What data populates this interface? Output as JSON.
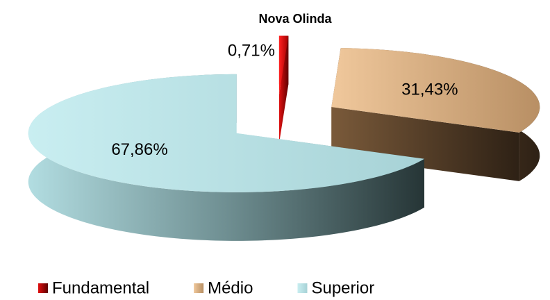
{
  "chart_data": {
    "type": "pie3d",
    "title": "Nova Olinda",
    "categories": [
      "Fundamental",
      "Médio",
      "Superior"
    ],
    "values": [
      0.71,
      31.43,
      67.86
    ],
    "value_labels": [
      "0,71%",
      "31,43%",
      "67,86%"
    ],
    "colors": [
      "#c00000",
      "#e3b383",
      "#bde5e9"
    ],
    "legend": "bottom"
  }
}
